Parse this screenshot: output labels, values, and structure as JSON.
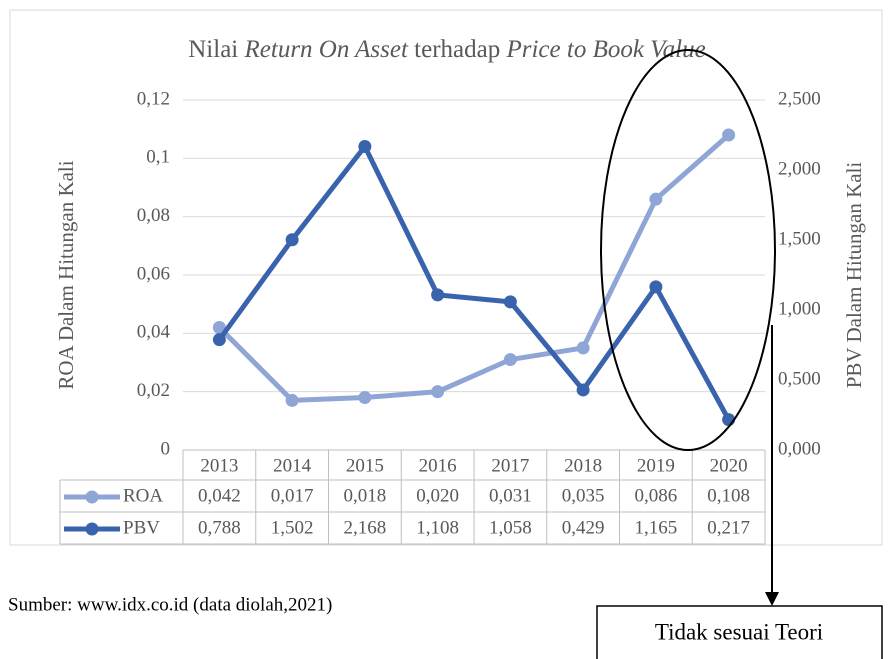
{
  "chart_data": {
    "type": "line",
    "title_parts": [
      "Nilai ",
      "Return On Asset",
      " terhadap ",
      "Price to Book Value"
    ],
    "y_label": "ROA Dalam Hitungan Kali",
    "y2_label": "PBV Dalam Hitungan Kali",
    "categories": [
      "2013",
      "2014",
      "2015",
      "2016",
      "2017",
      "2018",
      "2019",
      "2020"
    ],
    "series": [
      {
        "name": "ROA",
        "color": "#8fa5d6",
        "values": [
          0.042,
          0.017,
          0.018,
          0.02,
          0.031,
          0.035,
          0.086,
          0.108
        ],
        "value_labels": [
          "0,042",
          "0,017",
          "0,018",
          "0,020",
          "0,031",
          "0,035",
          "0,086",
          "0,108"
        ]
      },
      {
        "name": "PBV",
        "color": "#3a63ad",
        "axis": "y2",
        "values": [
          0.788,
          1.502,
          2.168,
          1.108,
          1.058,
          0.429,
          1.165,
          0.217
        ],
        "value_labels": [
          "0,788",
          "1,502",
          "2,168",
          "1,108",
          "1,058",
          "0,429",
          "1,165",
          "0,217"
        ]
      }
    ],
    "ylim": [
      0,
      0.12
    ],
    "yticks": [
      0,
      {
        "value": 0.02,
        "label": "0,02"
      },
      {
        "value": 0.04,
        "label": "0,04"
      },
      {
        "value": 0.06,
        "label": "0,06"
      },
      {
        "value": 0.08,
        "label": "0,08"
      },
      {
        "value": 0.1,
        "label": "0,1"
      },
      {
        "value": 0.12,
        "label": "0,12"
      }
    ],
    "y2lim": [
      0,
      2.5
    ],
    "y2ticks": [
      {
        "value": 0,
        "label": "0,000"
      },
      {
        "value": 0.5,
        "label": "0,500"
      },
      {
        "value": 1,
        "label": "1,000"
      },
      {
        "value": 1.5,
        "label": "1,500"
      },
      {
        "value": 2,
        "label": "2,000"
      },
      {
        "value": 2.5,
        "label": "2,500"
      }
    ],
    "grid": true,
    "source": "Sumber: www.idx.co.id (data diolah,2021)",
    "annotation": "Tidak sesuai Teori"
  }
}
